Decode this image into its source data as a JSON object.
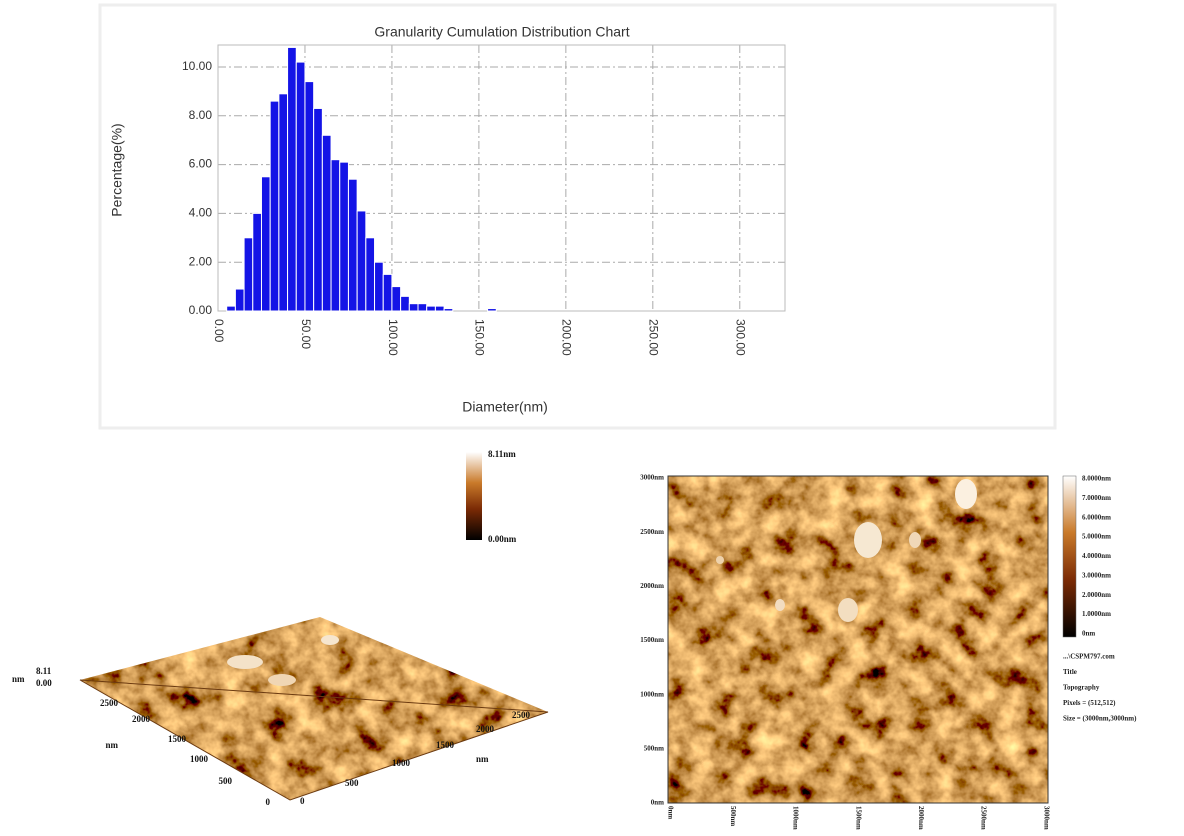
{
  "chart_data": {
    "type": "histogram",
    "title": "Granularity Cumulation Distribution  Chart",
    "x_label": "Diameter(nm)",
    "y_label": "Percentage(%)",
    "bins": [
      5,
      10,
      15,
      20,
      25,
      30,
      35,
      40,
      45,
      50,
      55,
      60,
      65,
      70,
      75,
      80,
      85,
      90,
      95,
      100,
      105,
      110,
      115,
      120,
      125,
      130,
      135,
      140,
      145,
      150,
      155,
      160
    ],
    "values": [
      0.2,
      0.9,
      3.0,
      4.0,
      5.5,
      8.6,
      8.9,
      10.8,
      10.2,
      9.4,
      8.3,
      7.2,
      6.2,
      6.1,
      5.4,
      4.1,
      3.0,
      2.0,
      1.5,
      1.0,
      0.6,
      0.3,
      0.3,
      0.2,
      0.2,
      0.1,
      0,
      0,
      0,
      0,
      0.1
    ],
    "color": "#1414e6",
    "xlim": [
      0,
      326
    ],
    "ylim": [
      0,
      10.9
    ],
    "xticks": [
      {
        "value": 0,
        "label": "0.00"
      },
      {
        "value": 50,
        "label": "50.00"
      },
      {
        "value": 100,
        "label": "100.00"
      },
      {
        "value": 150,
        "label": "150.00"
      },
      {
        "value": 200,
        "label": "200.00"
      },
      {
        "value": 250,
        "label": "250.00"
      },
      {
        "value": 300,
        "label": "300.00"
      }
    ],
    "yticks": [
      {
        "value": 0,
        "label": "0.00"
      },
      {
        "value": 2,
        "label": "2.00"
      },
      {
        "value": 4,
        "label": "4.00"
      },
      {
        "value": 6,
        "label": "6.00"
      },
      {
        "value": 8,
        "label": "8.00"
      },
      {
        "value": 10,
        "label": "10.00"
      }
    ],
    "grid": true
  },
  "afm_3d": {
    "colorbar": [
      "8.11nm",
      "0.00nm"
    ],
    "z_unit": "nm",
    "z_top": "8.11",
    "z_bottom": "0.00",
    "left_axis": [
      "2500",
      "2000",
      "1500",
      "1000",
      "500",
      "0"
    ],
    "left_unit": "nm",
    "right_axis": [
      "0",
      "500",
      "1000",
      "1500",
      "2000",
      "2500"
    ],
    "right_unit": "nm"
  },
  "afm_2d": {
    "y_axis": [
      "3000nm",
      "2500nm",
      "2000nm",
      "1500nm",
      "1000nm",
      "500nm",
      "0nm"
    ],
    "x_axis": [
      "0nm",
      "500nm",
      "1000nm",
      "1500nm",
      "2000nm",
      "2500nm",
      "3000nm"
    ],
    "colorbar": [
      "8.0000nm",
      "7.0000nm",
      "6.0000nm",
      "5.0000nm",
      "4.0000nm",
      "3.0000nm",
      "2.0000nm",
      "1.0000nm",
      "0nm"
    ],
    "info": [
      "...\\CSPM797.com",
      "Title",
      "Topography",
      "Pixels = (512,512)",
      "Size = (3000nm,3000nm)"
    ]
  }
}
